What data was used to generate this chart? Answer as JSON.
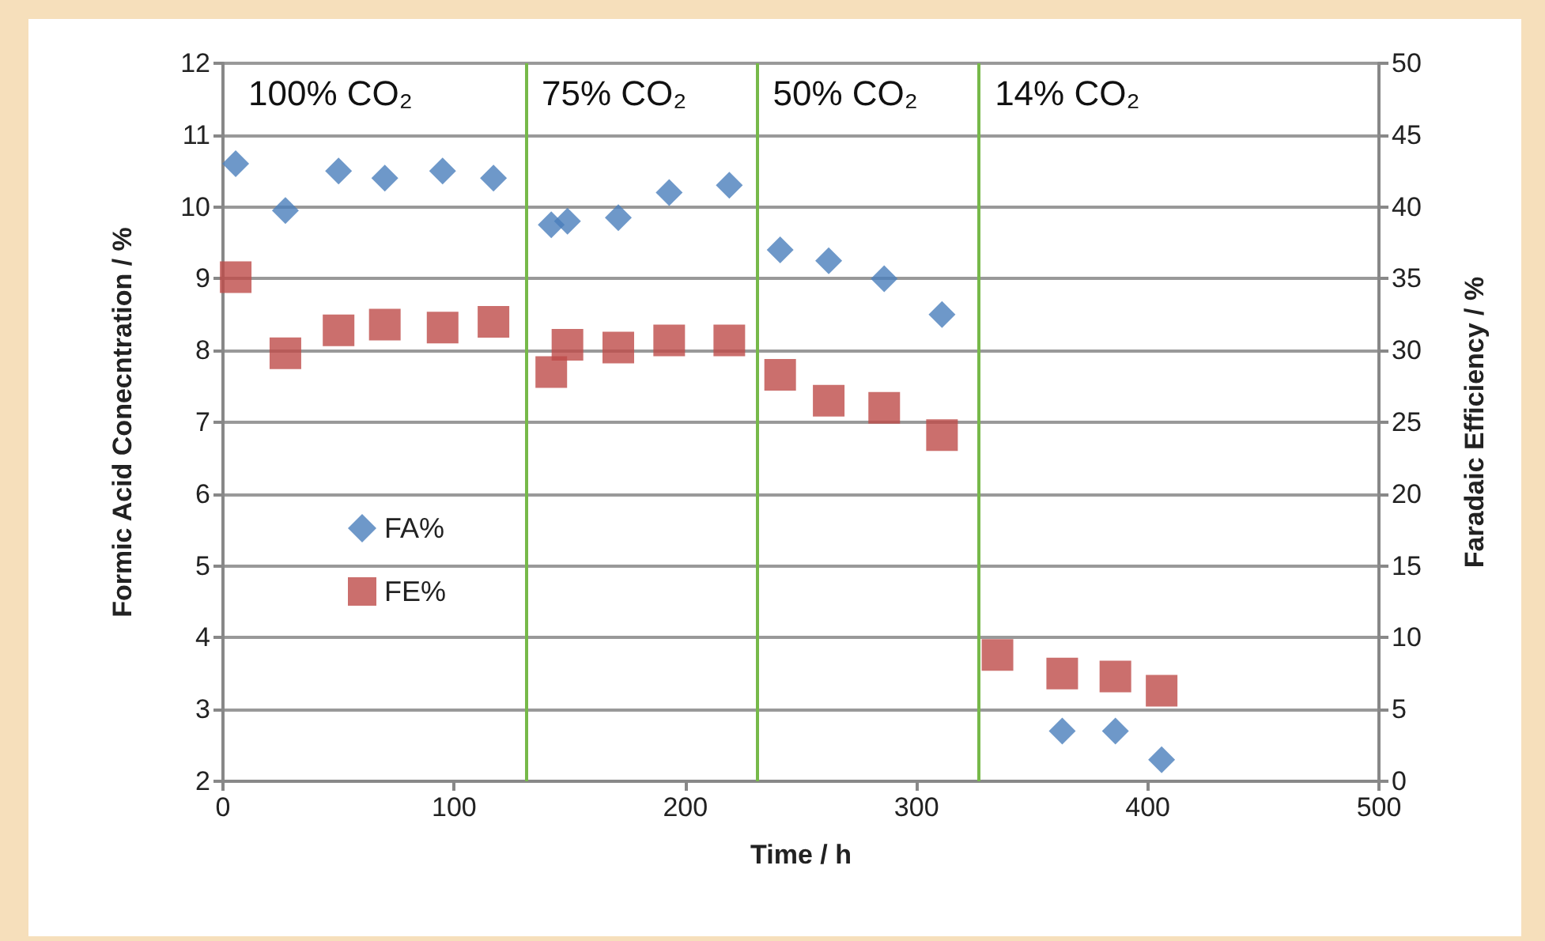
{
  "chart_data": {
    "type": "scatter",
    "xlabel": "Time / h",
    "ylabel": "Formic Acid Conecntration / %",
    "y2label": "Faradaic Efficiency / %",
    "xlim": [
      0,
      500
    ],
    "xticks": [
      0,
      100,
      200,
      300,
      400,
      500
    ],
    "ylim": [
      2,
      12
    ],
    "yticks": [
      2,
      3,
      4,
      5,
      6,
      7,
      8,
      9,
      10,
      11,
      12
    ],
    "y2lim": [
      0,
      50
    ],
    "y2ticks": [
      0,
      5,
      10,
      15,
      20,
      25,
      30,
      35,
      40,
      45,
      50
    ],
    "grid": "y",
    "legend": "left",
    "series": [
      {
        "name": "FA%",
        "color": "#4a7ebb",
        "marker": "diamond",
        "x": [
          5.5,
          27,
          50,
          70,
          95,
          117,
          142,
          149,
          171,
          193,
          219,
          241,
          262,
          286,
          311,
          335,
          363,
          386,
          406
        ],
        "values": [
          10.6,
          9.95,
          10.5,
          10.4,
          10.5,
          10.4,
          9.75,
          9.8,
          9.85,
          10.2,
          10.3,
          9.4,
          9.25,
          9.0,
          8.5,
          null,
          2.7,
          2.7,
          2.3
        ]
      },
      {
        "name": "FE%",
        "color": "#be4b48",
        "marker": "square",
        "axis": "y2",
        "x": [
          5.5,
          27,
          50,
          70,
          95,
          117,
          142,
          149,
          171,
          193,
          219,
          241,
          262,
          286,
          311,
          335,
          363,
          386,
          406
        ],
        "values": [
          35.1,
          29.8,
          31.4,
          31.8,
          31.6,
          32.0,
          28.5,
          30.4,
          30.2,
          30.7,
          30.7,
          28.3,
          26.5,
          26.0,
          24.1,
          8.8,
          7.5,
          7.3,
          6.3
        ]
      }
    ],
    "ref_lines": [
      {
        "axis": "x",
        "value": 131,
        "color": "#77b94a"
      },
      {
        "axis": "x",
        "value": 231,
        "color": "#77b94a"
      },
      {
        "axis": "x",
        "value": 327,
        "color": "#77b94a"
      }
    ],
    "annotations": [
      "100% CO₂",
      "75% CO₂",
      "50% CO₂",
      "14% CO₂"
    ]
  }
}
